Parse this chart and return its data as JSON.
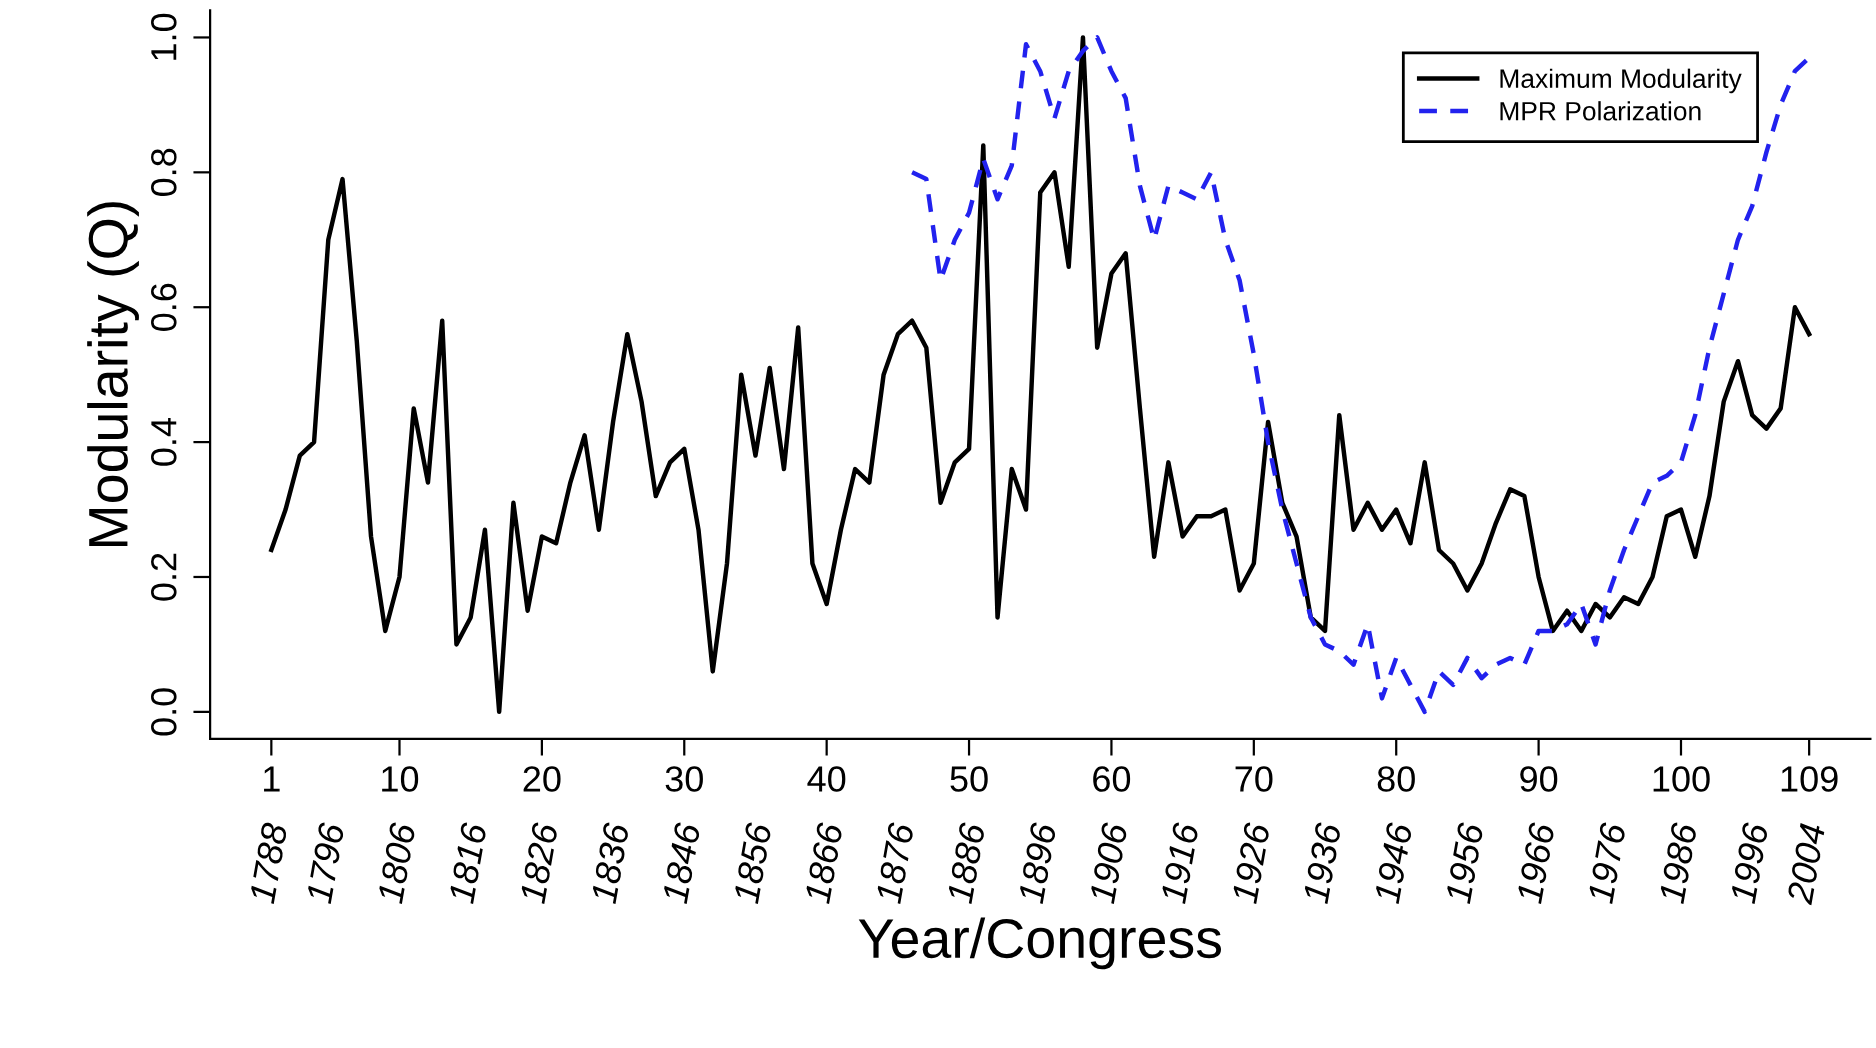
{
  "chart_data": {
    "type": "line",
    "xlabel": "Year/Congress",
    "ylabel": "Modularity (Q)",
    "xlim": [
      -3.3,
      113.3
    ],
    "ylim": [
      -0.04,
      1.04
    ],
    "xticks": [
      1,
      10,
      20,
      30,
      40,
      50,
      60,
      70,
      80,
      90,
      100,
      109
    ],
    "x2lim": [
      1779.4,
      2012.6
    ],
    "x2ticks": [
      1788,
      1796,
      1806,
      1816,
      1826,
      1836,
      1846,
      1856,
      1866,
      1876,
      1886,
      1896,
      1906,
      1916,
      1926,
      1936,
      1946,
      1956,
      1966,
      1976,
      1986,
      1996,
      2004
    ],
    "yticks": [
      {
        "value": 0,
        "label": "0.0"
      },
      {
        "value": 0.2,
        "label": "0.2"
      },
      {
        "value": 0.4,
        "label": "0.4"
      },
      {
        "value": 0.6,
        "label": "0.6"
      },
      {
        "value": 0.8,
        "label": "0.8"
      },
      {
        "value": 1,
        "label": "1.0"
      }
    ],
    "grid": false,
    "legend": "top right",
    "marker": "none",
    "series": [
      {
        "name": "Maximum Modularity",
        "color": "#000000",
        "line_style": "solid",
        "x": [
          1,
          2,
          3,
          4,
          5,
          6,
          7,
          8,
          9,
          10,
          11,
          12,
          13,
          14,
          15,
          16,
          17,
          18,
          19,
          20,
          21,
          22,
          23,
          24,
          25,
          26,
          27,
          28,
          29,
          30,
          31,
          32,
          33,
          34,
          35,
          36,
          37,
          38,
          39,
          40,
          41,
          42,
          43,
          44,
          45,
          46,
          47,
          48,
          49,
          50,
          51,
          52,
          53,
          54,
          55,
          56,
          57,
          58,
          59,
          60,
          61,
          62,
          63,
          64,
          65,
          66,
          67,
          68,
          69,
          70,
          71,
          72,
          73,
          74,
          75,
          76,
          77,
          78,
          79,
          80,
          81,
          82,
          83,
          84,
          85,
          86,
          87,
          88,
          89,
          90,
          91,
          92,
          93,
          94,
          95,
          96,
          97,
          98,
          99,
          100,
          101,
          102,
          103,
          104,
          105,
          106,
          107,
          108,
          109
        ],
        "values": [
          0.24,
          0.3,
          0.38,
          0.4,
          0.7,
          0.79,
          0.55,
          0.26,
          0.12,
          0.2,
          0.45,
          0.34,
          0.58,
          0.1,
          0.14,
          0.27,
          0.0,
          0.31,
          0.15,
          0.26,
          0.25,
          0.34,
          0.41,
          0.27,
          0.43,
          0.56,
          0.46,
          0.32,
          0.37,
          0.39,
          0.27,
          0.06,
          0.22,
          0.5,
          0.38,
          0.51,
          0.36,
          0.57,
          0.22,
          0.16,
          0.27,
          0.36,
          0.34,
          0.5,
          0.56,
          0.58,
          0.54,
          0.31,
          0.37,
          0.39,
          0.84,
          0.14,
          0.36,
          0.3,
          0.77,
          0.8,
          0.66,
          1.0,
          0.54,
          0.65,
          0.68,
          0.45,
          0.23,
          0.37,
          0.26,
          0.29,
          0.29,
          0.3,
          0.18,
          0.22,
          0.43,
          0.31,
          0.26,
          0.14,
          0.12,
          0.44,
          0.27,
          0.31,
          0.27,
          0.3,
          0.25,
          0.37,
          0.24,
          0.22,
          0.18,
          0.22,
          0.28,
          0.33,
          0.32,
          0.2,
          0.12,
          0.15,
          0.12,
          0.16,
          0.14,
          0.17,
          0.16,
          0.2,
          0.29,
          0.3,
          0.23,
          0.32,
          0.46,
          0.52,
          0.44,
          0.42,
          0.45,
          0.6,
          0.56
        ]
      },
      {
        "name": "MPR Polarization",
        "color": "#2222ee",
        "line_style": "dashed",
        "x": [
          46,
          47,
          48,
          49,
          50,
          51,
          52,
          53,
          54,
          55,
          56,
          57,
          58,
          59,
          60,
          61,
          62,
          63,
          64,
          65,
          66,
          67,
          68,
          69,
          70,
          71,
          72,
          73,
          74,
          75,
          76,
          77,
          78,
          79,
          80,
          81,
          82,
          83,
          84,
          85,
          86,
          87,
          88,
          89,
          90,
          91,
          92,
          93,
          94,
          95,
          96,
          97,
          98,
          99,
          100,
          101,
          102,
          103,
          104,
          105,
          106,
          107,
          108,
          109
        ],
        "values": [
          0.8,
          0.79,
          0.64,
          0.7,
          0.74,
          0.82,
          0.76,
          0.81,
          0.99,
          0.95,
          0.88,
          0.95,
          0.98,
          1.0,
          0.95,
          0.91,
          0.78,
          0.7,
          0.78,
          0.77,
          0.76,
          0.8,
          0.7,
          0.64,
          0.53,
          0.4,
          0.3,
          0.22,
          0.14,
          0.1,
          0.09,
          0.07,
          0.13,
          0.02,
          0.08,
          0.04,
          0.0,
          0.06,
          0.04,
          0.08,
          0.05,
          0.07,
          0.08,
          0.07,
          0.12,
          0.12,
          0.13,
          0.16,
          0.1,
          0.18,
          0.24,
          0.29,
          0.34,
          0.35,
          0.37,
          0.44,
          0.54,
          0.62,
          0.7,
          0.75,
          0.83,
          0.9,
          0.95,
          0.97
        ]
      }
    ]
  }
}
